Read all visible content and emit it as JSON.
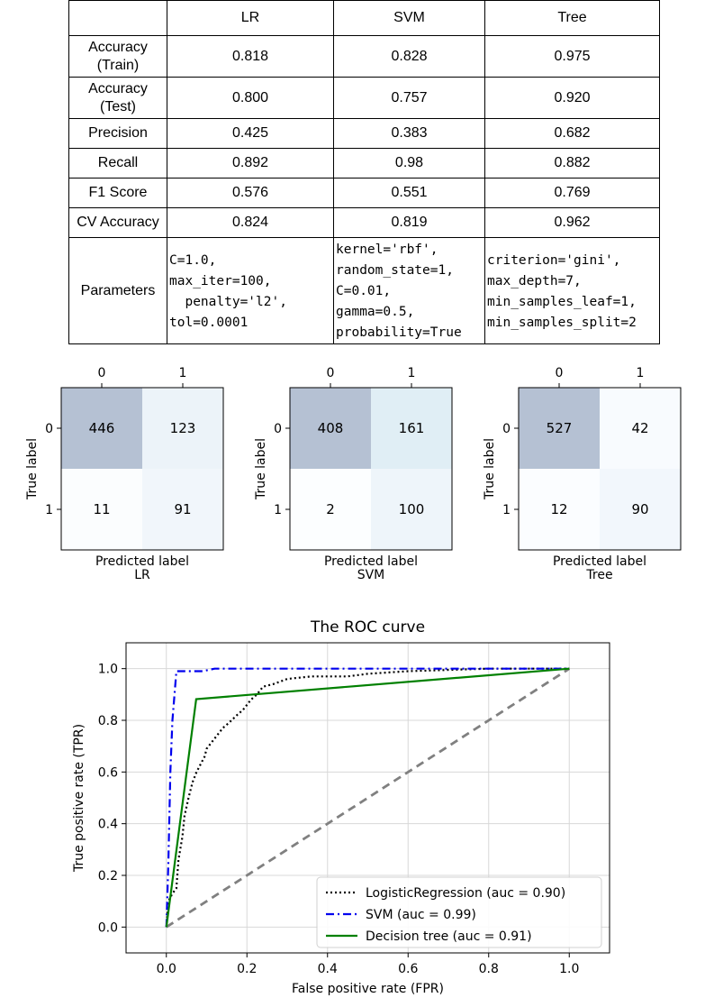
{
  "table": {
    "headers": [
      "",
      "LR",
      "SVM",
      "Tree"
    ],
    "rows": [
      {
        "label": "Accuracy\n(Train)",
        "values": [
          "0.818",
          "0.828",
          "0.975"
        ]
      },
      {
        "label": "Accuracy\n(Test)",
        "values": [
          "0.800",
          "0.757",
          "0.920"
        ]
      },
      {
        "label": "Precision",
        "values": [
          "0.425",
          "0.383",
          "0.682"
        ]
      },
      {
        "label": "Recall",
        "values": [
          "0.892",
          "0.98",
          "0.882"
        ]
      },
      {
        "label": "F1 Score",
        "values": [
          "0.576",
          "0.551",
          "0.769"
        ]
      },
      {
        "label": "CV Accuracy",
        "values": [
          "0.824",
          "0.819",
          "0.962"
        ]
      }
    ],
    "parameters": {
      "label": "Parameters",
      "values": [
        "C=1.0,\nmax_iter=100,\n  penalty='l2',\ntol=0.0001",
        "kernel='rbf',\nrandom_state=1,\nC=0.01,\ngamma=0.5,\nprobability=True",
        "criterion='gini',\nmax_depth=7,\nmin_samples_leaf=1,\nmin_samples_split=2"
      ]
    }
  },
  "chart_data": [
    {
      "type": "heatmap",
      "title": "LR",
      "xlabel": "Predicted label",
      "ylabel": "True label",
      "x_ticks": [
        "0",
        "1"
      ],
      "y_ticks": [
        "0",
        "1"
      ],
      "matrix": [
        [
          446,
          123
        ],
        [
          11,
          91
        ]
      ],
      "colormap": "Blues"
    },
    {
      "type": "heatmap",
      "title": "SVM",
      "xlabel": "Predicted label",
      "ylabel": "True label",
      "x_ticks": [
        "0",
        "1"
      ],
      "y_ticks": [
        "0",
        "1"
      ],
      "matrix": [
        [
          408,
          161
        ],
        [
          2,
          100
        ]
      ],
      "colormap": "Blues"
    },
    {
      "type": "heatmap",
      "title": "Tree",
      "xlabel": "Predicted label",
      "ylabel": "True label",
      "x_ticks": [
        "0",
        "1"
      ],
      "y_ticks": [
        "0",
        "1"
      ],
      "matrix": [
        [
          527,
          42
        ],
        [
          12,
          90
        ]
      ],
      "colormap": "Blues"
    },
    {
      "type": "line",
      "title": "The ROC curve",
      "xlabel": "False positive rate (FPR)",
      "ylabel": "True positive rate (TPR)",
      "xlim": [
        -0.1,
        1.1
      ],
      "ylim": [
        -0.1,
        1.1
      ],
      "x_ticks": [
        0.0,
        0.2,
        0.4,
        0.6,
        0.8,
        1.0
      ],
      "y_ticks": [
        0.0,
        0.2,
        0.4,
        0.6,
        0.8,
        1.0
      ],
      "grid": true,
      "legend_position": "lower-right",
      "series": [
        {
          "name": "LogisticRegression (auc = 0.90)",
          "color": "#000000",
          "style": "dotted",
          "points": [
            [
              0,
              0
            ],
            [
              0.005,
              0.1
            ],
            [
              0.015,
              0.13
            ],
            [
              0.025,
              0.15
            ],
            [
              0.03,
              0.26
            ],
            [
              0.04,
              0.35
            ],
            [
              0.045,
              0.43
            ],
            [
              0.055,
              0.5
            ],
            [
              0.065,
              0.56
            ],
            [
              0.075,
              0.6
            ],
            [
              0.085,
              0.63
            ],
            [
              0.095,
              0.66
            ],
            [
              0.1,
              0.69
            ],
            [
              0.115,
              0.72
            ],
            [
              0.125,
              0.74
            ],
            [
              0.14,
              0.77
            ],
            [
              0.155,
              0.79
            ],
            [
              0.175,
              0.82
            ],
            [
              0.19,
              0.84
            ],
            [
              0.2,
              0.86
            ],
            [
              0.21,
              0.88
            ],
            [
              0.225,
              0.9
            ],
            [
              0.24,
              0.93
            ],
            [
              0.265,
              0.94
            ],
            [
              0.3,
              0.96
            ],
            [
              0.36,
              0.97
            ],
            [
              0.45,
              0.97
            ],
            [
              0.5,
              0.98
            ],
            [
              0.6,
              0.99
            ],
            [
              0.8,
              1.0
            ],
            [
              1.0,
              1.0
            ]
          ]
        },
        {
          "name": "SVM (auc = 0.99)",
          "color": "#0000ee",
          "style": "dashdot",
          "points": [
            [
              0,
              0
            ],
            [
              0.005,
              0.25
            ],
            [
              0.01,
              0.6
            ],
            [
              0.015,
              0.8
            ],
            [
              0.025,
              0.99
            ],
            [
              0.09,
              0.99
            ],
            [
              0.12,
              1.0
            ],
            [
              1.0,
              1.0
            ]
          ]
        },
        {
          "name": "Decision tree (auc = 0.91)",
          "color": "#008000",
          "style": "solid",
          "points": [
            [
              0,
              0
            ],
            [
              0.074,
              0.882
            ],
            [
              1.0,
              1.0
            ]
          ]
        },
        {
          "name": "",
          "color": "#808080",
          "style": "dashed",
          "points": [
            [
              0,
              0
            ],
            [
              1.0,
              1.0
            ]
          ]
        }
      ]
    }
  ]
}
